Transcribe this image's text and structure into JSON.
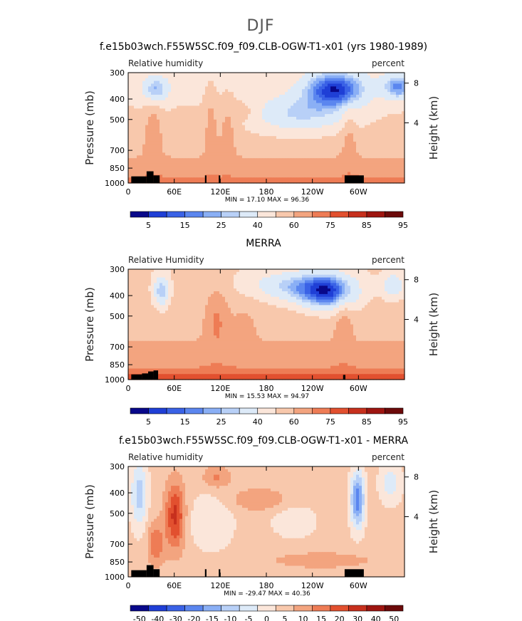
{
  "figure": {
    "suptitle": "DJF"
  },
  "colors": {
    "seq_palette": [
      "#08088a",
      "#1f3fd6",
      "#3a62e6",
      "#5b86ef",
      "#8aaff5",
      "#b8d0f7",
      "#ddeaf8",
      "#fbe6da",
      "#f8c8ac",
      "#f3a47f",
      "#ee7c55",
      "#e2502f",
      "#c7301d",
      "#9e1510",
      "#6c0a0a"
    ],
    "diff_palette": [
      "#08088a",
      "#1f3fd6",
      "#3a62e6",
      "#5b86ef",
      "#8aaff5",
      "#b8d0f7",
      "#ddeaf8",
      "#fbe6da",
      "#f8c8ac",
      "#f3a47f",
      "#ee7c55",
      "#e2502f",
      "#c7301d",
      "#9e1510",
      "#6c0a0a"
    ],
    "terrain": "#000000"
  },
  "chart_data": [
    {
      "type": "heatmap",
      "title": "f.e15b03wch.F55W5SC.f09_f09.CLB-OGW-T1-x01 (yrs 1980-1989)",
      "left_label": "Relative humidity",
      "right_label": "percent",
      "ylabel": "Pressure (mb)",
      "y2label": "Height (km)",
      "xticks": [
        "0",
        "60E",
        "120E",
        "180",
        "120W",
        "60W"
      ],
      "yticks": [
        "300",
        "400",
        "500",
        "700",
        "850",
        "1000"
      ],
      "y2ticks": [
        "8",
        "4"
      ],
      "xlim": [
        0,
        360
      ],
      "ylim": [
        1000,
        300
      ],
      "stats": "MIN =   17.10   MAX =   96.36",
      "colorbar_labels": [
        "5",
        "15",
        "25",
        "40",
        "60",
        "75",
        "85",
        "95"
      ],
      "colorbar_levels": [
        5,
        10,
        15,
        20,
        25,
        30,
        40,
        50,
        60,
        70,
        75,
        80,
        85,
        90,
        95
      ]
    },
    {
      "type": "heatmap",
      "title": "MERRA",
      "left_label": "Relative Humidity",
      "right_label": "percent",
      "ylabel": "Pressure (mb)",
      "y2label": "Height (km)",
      "xticks": [
        "0",
        "60E",
        "120E",
        "180",
        "120W",
        "60W"
      ],
      "yticks": [
        "300",
        "400",
        "500",
        "700",
        "850",
        "1000"
      ],
      "y2ticks": [
        "8",
        "4"
      ],
      "xlim": [
        0,
        360
      ],
      "ylim": [
        1000,
        300
      ],
      "stats": "MIN =   15.53   MAX =   94.97",
      "colorbar_labels": [
        "5",
        "15",
        "25",
        "40",
        "60",
        "75",
        "85",
        "95"
      ],
      "colorbar_levels": [
        5,
        10,
        15,
        20,
        25,
        30,
        40,
        50,
        60,
        70,
        75,
        80,
        85,
        90,
        95
      ]
    },
    {
      "type": "heatmap",
      "title": "f.e15b03wch.F55W5SC.f09_f09.CLB-OGW-T1-x01 - MERRA",
      "left_label": "Relative humidity",
      "right_label": "percent",
      "ylabel": "Pressure (mb)",
      "y2label": "Height (km)",
      "xticks": [
        "0",
        "60E",
        "120E",
        "180",
        "120W",
        "60W"
      ],
      "yticks": [
        "300",
        "400",
        "500",
        "700",
        "850",
        "1000"
      ],
      "y2ticks": [
        "8",
        "4"
      ],
      "xlim": [
        0,
        360
      ],
      "ylim": [
        1000,
        300
      ],
      "stats": "MIN =  -29.47   MAX =   40.36",
      "colorbar_labels": [
        "-50",
        "-40",
        "-30",
        "-20",
        "-15",
        "-10",
        "-5",
        "0",
        "5",
        "10",
        "15",
        "20",
        "30",
        "40",
        "50"
      ],
      "colorbar_levels": [
        -50,
        -40,
        -30,
        -20,
        -15,
        -10,
        -5,
        0,
        5,
        10,
        15,
        20,
        30,
        40,
        50
      ]
    }
  ]
}
